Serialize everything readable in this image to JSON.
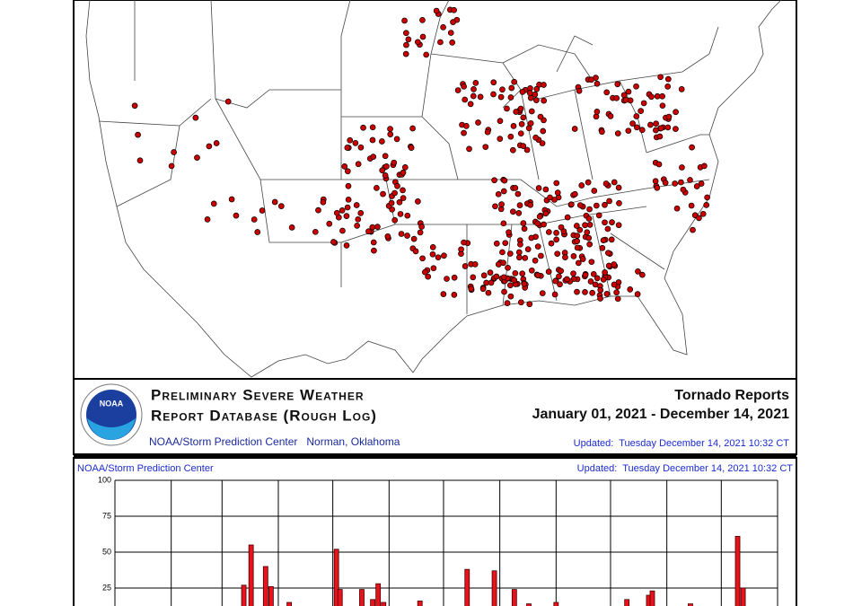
{
  "header": {
    "title_line1": "Preliminary Severe Weather",
    "title_line2": "Report Database (Rough Log)",
    "logo": "NOAA",
    "agency": "NOAA/Storm Prediction Center   Norman, Oklahoma",
    "report_type": "Tornado Reports",
    "date_range": "January 01, 2021 - December 14, 2021",
    "updated": "Updated:  Tuesday December 14, 2021 10:32 CT"
  },
  "chart_data": {
    "type": "bar",
    "title": "NOAA/Storm Prediction Center",
    "subtitle": "Updated:  Tuesday December 14, 2021 10:32 CT",
    "x": [
      71,
      75,
      83,
      86,
      96,
      122,
      124,
      136,
      142,
      145,
      148,
      168,
      194,
      209,
      220,
      228,
      243,
      282,
      294,
      296,
      317,
      343,
      346
    ],
    "values": [
      27,
      55,
      40,
      26,
      15,
      52,
      24,
      24,
      17,
      28,
      15,
      16,
      38,
      37,
      24,
      14,
      15,
      17,
      20,
      23,
      14,
      61,
      25
    ],
    "color": "#e8121c",
    "xlim": [
      0,
      365
    ],
    "xticks": [
      0,
      31,
      59,
      90,
      120,
      151,
      181,
      212,
      243,
      273,
      304,
      334,
      365
    ],
    "ylim": [
      0,
      100
    ],
    "yticks": [
      25,
      50,
      75,
      100
    ],
    "grid": true
  }
}
